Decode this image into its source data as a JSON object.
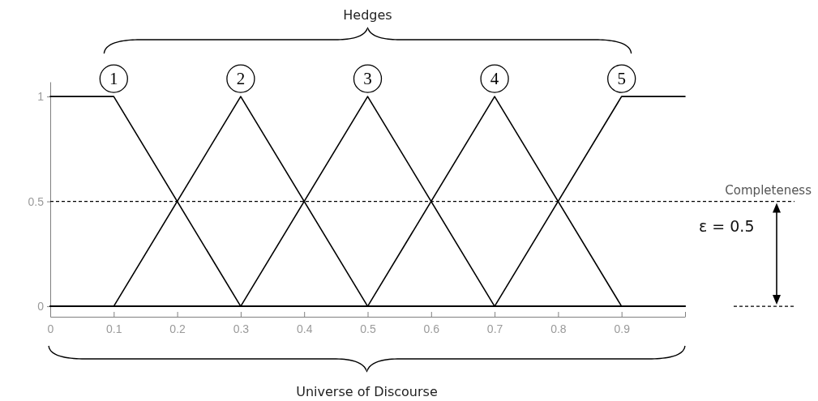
{
  "chart_data": {
    "type": "line",
    "xlabel": "Universe of Discourse",
    "annotations": [
      "Hedges",
      "ε = 0.5"
    ],
    "xlim": [
      0,
      1
    ],
    "ylim": [
      -0.05,
      1.07
    ],
    "xticks": [
      0,
      0.1,
      0.2,
      0.3,
      0.4,
      0.5,
      0.6,
      0.7,
      0.8,
      0.9,
      {
        "value": 1,
        "label": null
      }
    ],
    "yticks": [
      0,
      0.5,
      1
    ],
    "series": [
      {
        "name": "1",
        "color": "#000000",
        "x": [
          0,
          0.1,
          0.3,
          1
        ],
        "values": [
          1,
          1,
          0,
          0
        ]
      },
      {
        "name": "2",
        "color": "#000000",
        "x": [
          0,
          0.1,
          0.3,
          0.5,
          1
        ],
        "values": [
          0,
          0,
          1,
          0,
          0
        ]
      },
      {
        "name": "3",
        "color": "#000000",
        "x": [
          0,
          0.3,
          0.5,
          0.7,
          1
        ],
        "values": [
          0,
          0,
          1,
          0,
          0
        ]
      },
      {
        "name": "4",
        "color": "#000000",
        "x": [
          0,
          0.5,
          0.7,
          0.9,
          1
        ],
        "values": [
          0,
          0,
          1,
          0,
          0
        ]
      },
      {
        "name": "5",
        "color": "#000000",
        "x": [
          0,
          0.7,
          0.9,
          1
        ],
        "values": [
          0,
          0,
          1,
          1
        ]
      }
    ],
    "ref_lines": [
      {
        "axis": "y",
        "value": 0.5,
        "label": "Completeness",
        "line_style": "dashed",
        "color": "#000000"
      }
    ]
  }
}
